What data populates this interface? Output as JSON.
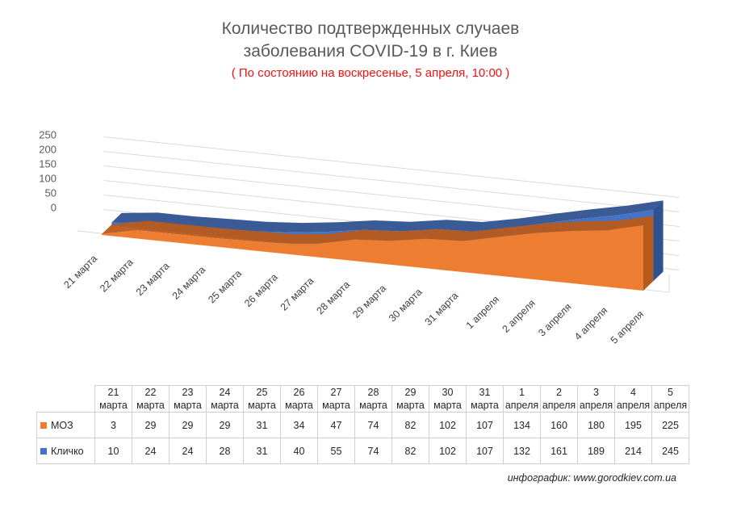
{
  "title_line1": "Количество подтвержденных случаев",
  "title_line2": "заболевания COVID-19 в г. Киев",
  "subtitle": "( По состоянию на воскресенье, 5 апреля, 10:00 )",
  "credit": "инфографик: www.gorodkiev.com.ua",
  "colors": {
    "moz": "#ED7D31",
    "klichko": "#4472C4"
  },
  "chart_data": {
    "type": "area",
    "categories": [
      "21 марта",
      "22 марта",
      "23 марта",
      "24 марта",
      "25 марта",
      "26 марта",
      "27 марта",
      "28 марта",
      "29 марта",
      "30 марта",
      "31 марта",
      "1 апреля",
      "2 апреля",
      "3 апреля",
      "4 апреля",
      "5 апреля"
    ],
    "series": [
      {
        "name": "МОЗ",
        "values": [
          3,
          29,
          29,
          29,
          31,
          34,
          47,
          74,
          82,
          102,
          107,
          134,
          160,
          180,
          195,
          225
        ]
      },
      {
        "name": "Кличко",
        "values": [
          10,
          24,
          24,
          28,
          31,
          40,
          55,
          74,
          82,
          102,
          107,
          132,
          161,
          189,
          214,
          245
        ]
      }
    ],
    "y_ticks": [
      0,
      50,
      100,
      150,
      200,
      250
    ],
    "ylim": [
      0,
      250
    ],
    "grid": true
  },
  "table": {
    "headers": [
      [
        "21",
        "марта"
      ],
      [
        "22",
        "марта"
      ],
      [
        "23",
        "марта"
      ],
      [
        "24",
        "марта"
      ],
      [
        "25",
        "марта"
      ],
      [
        "26",
        "марта"
      ],
      [
        "27",
        "марта"
      ],
      [
        "28",
        "марта"
      ],
      [
        "29",
        "марта"
      ],
      [
        "30",
        "марта"
      ],
      [
        "31",
        "марта"
      ],
      [
        "1",
        "апреля"
      ],
      [
        "2",
        "апреля"
      ],
      [
        "3",
        "апреля"
      ],
      [
        "4",
        "апреля"
      ],
      [
        "5",
        "апреля"
      ]
    ],
    "row_labels": [
      "МОЗ",
      "Кличко"
    ]
  }
}
